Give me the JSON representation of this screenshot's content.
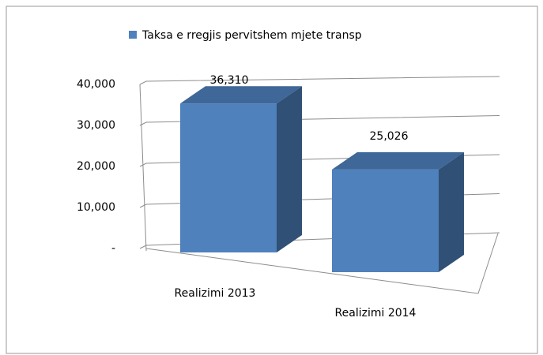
{
  "chart_data": {
    "type": "bar3d",
    "categories": [
      "Realizimi 2013",
      "Realizimi 2014"
    ],
    "series": [
      {
        "name": "Taksa e rregjis pervitshem mjete transp",
        "color": "#4f81bd",
        "values": [
          36310,
          25026
        ],
        "value_labels": [
          "36,310",
          "25,026"
        ]
      }
    ],
    "ylim": [
      0,
      40000
    ],
    "yticks": [
      {
        "value": 0,
        "label": "-"
      },
      {
        "value": 10000,
        "label": "10,000"
      },
      {
        "value": 20000,
        "label": "20,000"
      },
      {
        "value": 30000,
        "label": "30,000"
      },
      {
        "value": 40000,
        "label": "40,000"
      }
    ],
    "grid": true,
    "legend": "top"
  }
}
